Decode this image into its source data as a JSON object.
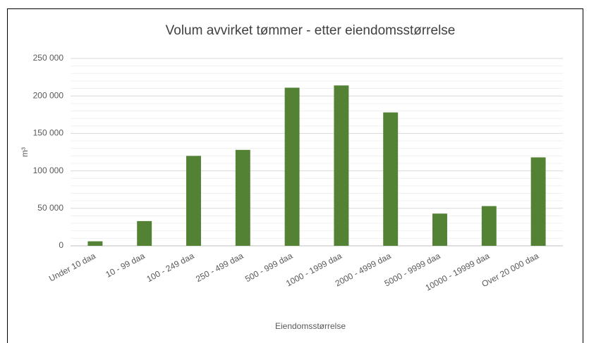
{
  "chart_data": {
    "type": "bar",
    "title": "Volum avvirket tømmer - etter eiendomsstørrelse",
    "x_label": "Eiendomsstørrelse",
    "y_label": "m³",
    "categories": [
      "Under 10 daa",
      "10 - 99 daa",
      "100 - 249 daa",
      "250 - 499 daa",
      "500 - 999 daa",
      "1000 - 1999 daa",
      "2000 - 4999 daa",
      "5000 - 9999 daa",
      "10000 - 19999 daa",
      "Over 20 000 daa"
    ],
    "values": [
      6000,
      33000,
      120000,
      128000,
      211000,
      214000,
      178000,
      43000,
      53000,
      118000
    ],
    "color": "#548235",
    "ylim": [
      0,
      250000
    ],
    "yticks": [
      0,
      {
        "value": 50000,
        "label": "50 000"
      },
      {
        "value": 100000,
        "label": "100 000"
      },
      {
        "value": 150000,
        "label": "150 000"
      },
      {
        "value": 200000,
        "label": "200 000"
      },
      {
        "value": 250000,
        "label": "250 000"
      }
    ],
    "minor_yticks": [
      10000,
      20000,
      30000,
      40000,
      60000,
      70000,
      80000,
      90000,
      110000,
      120000,
      130000,
      140000,
      160000,
      170000,
      180000,
      190000,
      210000,
      220000,
      230000,
      240000
    ],
    "grid": true
  }
}
